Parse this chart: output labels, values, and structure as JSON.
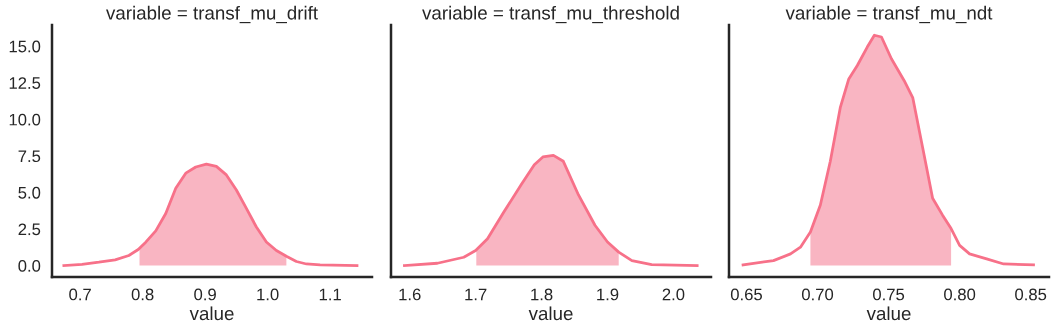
{
  "chart_data": [
    {
      "type": "line",
      "title": "variable = transf_mu_drift",
      "xlabel": "value",
      "xlim": [
        0.655,
        1.167
      ],
      "xticks": [
        0.7,
        0.8,
        0.9,
        {
          "value": 1,
          "label": "1.0"
        },
        1.1
      ],
      "ylim": [
        -0.78,
        16.45
      ],
      "yticks": [
        {
          "value": 0,
          "label": "0.0"
        },
        2.5,
        {
          "value": 5,
          "label": "5.0"
        },
        7.5,
        {
          "value": 10,
          "label": "10.0"
        },
        12.5,
        {
          "value": 15,
          "label": "15.0"
        }
      ],
      "grid": false,
      "legend": false,
      "series": [
        {
          "type": "area",
          "color": "#f9b5c2",
          "x": [
            0.795,
            0.805,
            0.821,
            0.837,
            0.853,
            0.869,
            0.885,
            0.902,
            0.918,
            0.934,
            0.95,
            0.966,
            0.982,
            0.998,
            1.014,
            1.03
          ],
          "values": [
            1.2,
            1.6,
            2.37,
            3.56,
            5.29,
            6.32,
            6.74,
            6.94,
            6.78,
            6.2,
            5.17,
            3.91,
            2.64,
            1.61,
            1.03,
            0.64
          ]
        },
        {
          "color": "#f77189",
          "x": [
            0.674,
            0.703,
            0.73,
            0.756,
            0.778,
            0.793,
            0.805,
            0.821,
            0.837,
            0.853,
            0.869,
            0.885,
            0.902,
            0.918,
            0.934,
            0.95,
            0.966,
            0.982,
            0.998,
            1.014,
            1.03,
            1.046,
            1.062,
            1.084,
            1.143
          ],
          "values": [
            0,
            0.09,
            0.23,
            0.39,
            0.69,
            1.1,
            1.6,
            2.37,
            3.56,
            5.29,
            6.32,
            6.74,
            6.94,
            6.78,
            6.2,
            5.17,
            3.91,
            2.64,
            1.61,
            1.03,
            0.64,
            0.28,
            0.11,
            0.05,
            0
          ]
        }
      ]
    },
    {
      "type": "line",
      "title": "variable = transf_mu_threshold",
      "xlabel": "value",
      "xlim": [
        1.5716,
        2.057
      ],
      "xticks": [
        1.6,
        1.7,
        1.8,
        1.9,
        {
          "value": 2,
          "label": "2.0"
        }
      ],
      "ylim": [
        -0.78,
        16.45
      ],
      "tick_labels": "x",
      "grid": false,
      "legend": false,
      "series": [
        {
          "type": "area",
          "color": "#f9b5c2",
          "x": [
            1.701,
            1.718,
            1.743,
            1.769,
            1.789,
            1.802,
            1.818,
            1.833,
            1.856,
            1.881,
            1.9,
            1.917
          ],
          "values": [
            1.03,
            1.84,
            3.68,
            5.52,
            6.9,
            7.43,
            7.54,
            7.13,
            4.83,
            2.76,
            1.61,
            0.92
          ]
        },
        {
          "color": "#f77189",
          "x": [
            1.592,
            1.642,
            1.682,
            1.7,
            1.718,
            1.743,
            1.769,
            1.789,
            1.802,
            1.818,
            1.833,
            1.856,
            1.881,
            1.9,
            1.917,
            1.937,
            1.967,
            2.036
          ],
          "values": [
            0,
            0.16,
            0.57,
            1.03,
            1.84,
            3.68,
            5.52,
            6.9,
            7.43,
            7.54,
            7.13,
            4.83,
            2.76,
            1.61,
            0.92,
            0.34,
            0.07,
            0
          ]
        }
      ]
    },
    {
      "type": "line",
      "title": "variable = transf_mu_ndt",
      "xlabel": "value",
      "xlim": [
        0.6377,
        0.8629
      ],
      "xticks": [
        {
          "value": 0.65,
          "label": "0.65"
        },
        {
          "value": 0.7,
          "label": "0.70"
        },
        {
          "value": 0.75,
          "label": "0.75"
        },
        {
          "value": 0.8,
          "label": "0.80"
        },
        {
          "value": 0.85,
          "label": "0.85"
        }
      ],
      "ylim": [
        -0.78,
        16.45
      ],
      "tick_labels": "x",
      "grid": false,
      "legend": false,
      "series": [
        {
          "type": "area",
          "color": "#f9b5c2",
          "x": [
            0.695,
            0.702,
            0.709,
            0.716,
            0.722,
            0.728,
            0.735,
            0.74,
            0.745,
            0.752,
            0.761,
            0.767,
            0.774,
            0.781,
            0.788,
            0.794
          ],
          "values": [
            2.3,
            4.14,
            7.13,
            10.8,
            12.76,
            13.68,
            14.94,
            15.75,
            15.63,
            14.14,
            12.64,
            11.49,
            8.05,
            4.6,
            3.45,
            2.53
          ]
        },
        {
          "color": "#f77189",
          "x": [
            0.6476,
            0.669,
            0.681,
            0.688,
            0.695,
            0.702,
            0.709,
            0.716,
            0.722,
            0.728,
            0.735,
            0.74,
            0.745,
            0.752,
            0.761,
            0.767,
            0.774,
            0.781,
            0.788,
            0.794,
            0.8,
            0.807,
            0.819,
            0.831,
            0.852
          ],
          "values": [
            0.05,
            0.34,
            0.8,
            1.26,
            2.3,
            4.14,
            7.13,
            10.8,
            12.76,
            13.68,
            14.94,
            15.75,
            15.63,
            14.14,
            12.64,
            11.49,
            8.05,
            4.6,
            3.45,
            2.53,
            1.38,
            0.8,
            0.46,
            0.11,
            0.05
          ]
        }
      ]
    }
  ]
}
